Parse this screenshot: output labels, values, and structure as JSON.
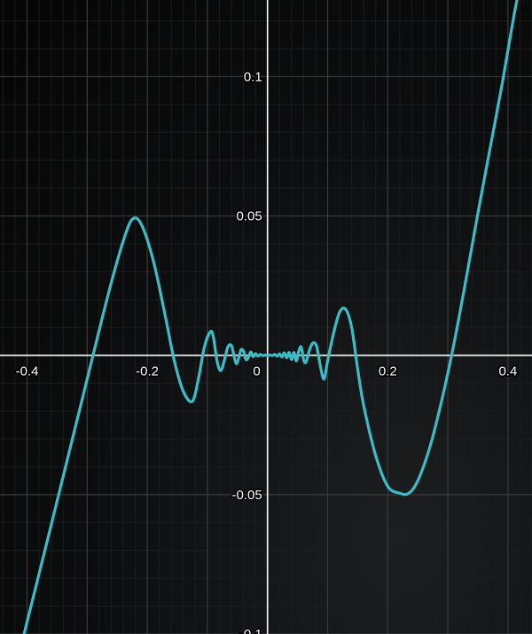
{
  "chart_data": {
    "type": "line",
    "title": "",
    "xlabel": "",
    "ylabel": "",
    "xlim": [
      -0.445,
      0.44
    ],
    "ylim": [
      -0.1,
      0.1275
    ],
    "grid": true,
    "x_ticks": [
      -0.4,
      -0.2,
      0.2,
      0.4
    ],
    "x_tick_labels": [
      "-0.4",
      "-0.2",
      "0.2",
      "0.4"
    ],
    "y_ticks": [
      0.1,
      0.05,
      -0.05,
      -0.1
    ],
    "y_tick_labels": [
      "0.1",
      "0.05",
      "-0.05",
      "-0.1"
    ],
    "origin_label": "0",
    "colors": {
      "curve": "#3bbcc6",
      "grid_major": "#3a3a3a",
      "grid_minor": "#1c1c1c",
      "axis": "#ffffff"
    },
    "series": [
      {
        "color": "#3bbcc6",
        "x": [
          -0.405,
          -0.36,
          -0.32,
          -0.3,
          -0.28,
          -0.26,
          -0.24,
          -0.225,
          -0.21,
          -0.19,
          -0.17,
          -0.155,
          -0.14,
          -0.125,
          -0.115,
          -0.105,
          -0.095,
          -0.09,
          -0.084,
          -0.078,
          -0.072,
          -0.066,
          -0.06,
          -0.056,
          -0.052,
          -0.048,
          -0.044,
          -0.04,
          -0.036,
          -0.032,
          -0.028,
          -0.024,
          -0.02,
          -0.016,
          -0.012,
          -0.008,
          -0.004,
          0.0,
          0.004,
          0.008,
          0.012,
          0.016,
          0.02,
          0.024,
          0.028,
          0.032,
          0.036,
          0.04,
          0.044,
          0.048,
          0.052,
          0.056,
          0.06,
          0.064,
          0.07,
          0.076,
          0.082,
          0.088,
          0.094,
          0.1,
          0.11,
          0.12,
          0.13,
          0.14,
          0.15,
          0.16,
          0.18,
          0.2,
          0.22,
          0.235,
          0.25,
          0.27,
          0.29,
          0.31,
          0.33,
          0.35,
          0.37,
          0.39,
          0.41,
          0.425
        ],
        "y": [
          -0.1,
          -0.061,
          -0.026,
          -0.0085,
          0.009,
          0.026,
          0.041,
          0.0488,
          0.047,
          0.034,
          0.014,
          -0.002,
          -0.013,
          -0.0165,
          -0.0085,
          0.003,
          0.0085,
          0.0065,
          -0.002,
          -0.0055,
          -0.002,
          0.003,
          0.0035,
          0.0,
          -0.003,
          -0.001,
          0.002,
          0.0015,
          -0.0015,
          -0.0008,
          0.0012,
          -0.0005,
          0.0006,
          -0.0003,
          0.0003,
          -0.0001,
          0.0001,
          0.0,
          0.0001,
          -0.0001,
          0.0003,
          -0.0003,
          0.0005,
          -0.0006,
          0.0009,
          -0.0009,
          0.001,
          -0.0015,
          0.001,
          -0.002,
          0.0015,
          0.003,
          -0.0015,
          -0.0025,
          0.002,
          0.0045,
          0.003,
          -0.004,
          -0.0085,
          -0.002,
          0.008,
          0.0155,
          0.0165,
          0.01,
          -0.005,
          -0.018,
          -0.036,
          -0.047,
          -0.0495,
          -0.0495,
          -0.045,
          -0.033,
          -0.016,
          0.004,
          0.027,
          0.051,
          0.074,
          0.097,
          0.122,
          0.138
        ]
      }
    ]
  }
}
